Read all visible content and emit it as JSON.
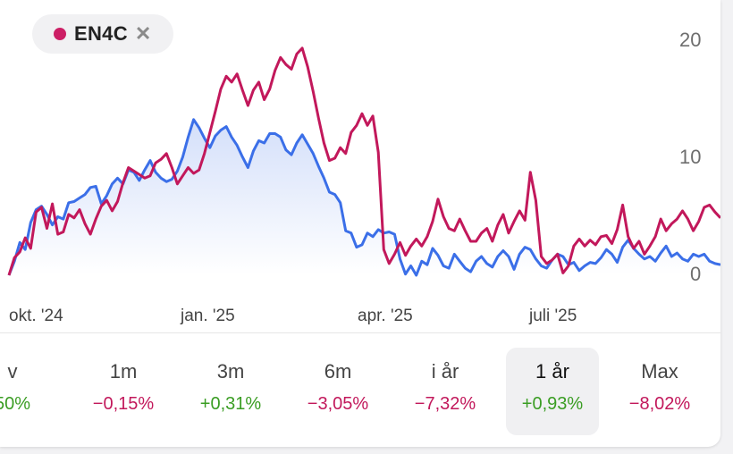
{
  "chip": {
    "label": "EN4C",
    "dot_color": "#cc1f65",
    "close_icon": "close-icon"
  },
  "chart_data": {
    "type": "line",
    "x_ticks": [
      "okt. '24",
      "jan. '25",
      "apr. '25",
      "juli '25"
    ],
    "y_ticks": [
      "20",
      "10",
      "0"
    ],
    "ylim": [
      0,
      20
    ],
    "series": [
      {
        "color": "#c2185b",
        "values": [
          0.0,
          1.5,
          2.0,
          3.2,
          2.3,
          5.4,
          5.8,
          4.0,
          6.1,
          3.5,
          3.7,
          5.2,
          4.9,
          5.6,
          4.4,
          3.5,
          4.8,
          5.9,
          6.4,
          5.5,
          6.3,
          7.9,
          9.2,
          8.9,
          8.6,
          8.3,
          8.5,
          9.6,
          9.9,
          10.4,
          9.2,
          7.8,
          8.5,
          9.2,
          8.7,
          9.0,
          10.4,
          12.2,
          14.0,
          15.9,
          17.0,
          16.5,
          17.2,
          15.8,
          14.5,
          15.8,
          16.5,
          15.0,
          15.9,
          17.5,
          18.6,
          18.0,
          17.6,
          18.9,
          19.4,
          17.8,
          15.7,
          13.4,
          11.3,
          9.8,
          10.0,
          10.9,
          10.4,
          12.2,
          12.8,
          13.8,
          12.8,
          13.6,
          10.5,
          2.2,
          1.0,
          1.8,
          2.8,
          1.7,
          2.5,
          3.1,
          2.5,
          3.3,
          4.6,
          6.5,
          5.0,
          4.0,
          3.8,
          4.8,
          3.8,
          2.9,
          2.9,
          3.6,
          4.0,
          2.9,
          4.3,
          5.2,
          3.6,
          4.6,
          5.5,
          4.7,
          8.8,
          6.4,
          1.6,
          1.0,
          1.3,
          1.8,
          0.2,
          0.8,
          2.5,
          3.1,
          2.5,
          3.0,
          2.6,
          3.3,
          3.4,
          2.7,
          3.9,
          6.0,
          3.3,
          2.3,
          2.9,
          1.8,
          2.5,
          3.3,
          4.8,
          3.8,
          4.4,
          4.8,
          5.5,
          4.8,
          3.8,
          4.6,
          5.8,
          6.0,
          5.4,
          4.9
        ]
      },
      {
        "color": "#3b6fe8",
        "values": [
          0.0,
          1.2,
          2.8,
          2.2,
          4.5,
          5.6,
          5.9,
          5.2,
          4.3,
          5.0,
          4.8,
          6.2,
          6.3,
          6.6,
          6.9,
          7.5,
          7.6,
          6.1,
          6.8,
          7.8,
          8.3,
          7.8,
          9.0,
          8.8,
          8.1,
          9.0,
          9.8,
          8.8,
          8.3,
          8.0,
          8.2,
          8.9,
          10.1,
          11.8,
          13.3,
          12.6,
          11.7,
          10.9,
          11.9,
          12.4,
          12.7,
          11.8,
          11.1,
          10.1,
          9.2,
          10.6,
          11.5,
          11.3,
          12.1,
          12.1,
          11.8,
          10.7,
          10.3,
          11.3,
          12.0,
          11.2,
          10.4,
          9.3,
          8.3,
          7.1,
          6.9,
          6.2,
          3.8,
          3.6,
          2.4,
          2.6,
          3.6,
          3.3,
          3.9,
          3.6,
          3.7,
          3.5,
          1.4,
          0.1,
          0.8,
          0.0,
          1.2,
          0.9,
          2.3,
          1.7,
          0.8,
          0.6,
          1.8,
          1.2,
          0.6,
          0.3,
          1.2,
          1.6,
          1.0,
          0.7,
          1.6,
          2.1,
          1.6,
          0.5,
          1.8,
          2.4,
          2.2,
          1.4,
          0.8,
          0.6,
          1.3,
          1.8,
          1.6,
          0.9,
          1.1,
          0.4,
          0.8,
          1.1,
          1.0,
          1.5,
          2.2,
          1.8,
          1.1,
          2.4,
          3.0,
          2.3,
          1.8,
          1.4,
          1.6,
          1.2,
          1.9,
          2.5,
          1.6,
          1.9,
          1.4,
          1.2,
          1.8,
          1.6,
          1.8,
          1.2,
          1.0,
          0.9
        ]
      }
    ]
  },
  "tabs": [
    {
      "label": "v",
      "value": "50%",
      "sign": "pos"
    },
    {
      "label": "1m",
      "value": "−0,15%",
      "sign": "neg"
    },
    {
      "label": "3m",
      "value": "+0,31%",
      "sign": "pos"
    },
    {
      "label": "6m",
      "value": "−3,05%",
      "sign": "neg"
    },
    {
      "label": "i år",
      "value": "−7,32%",
      "sign": "neg"
    },
    {
      "label": "1 år",
      "value": "+0,93%",
      "sign": "pos",
      "active": true
    },
    {
      "label": "Max",
      "value": "−8,02%",
      "sign": "neg"
    }
  ]
}
